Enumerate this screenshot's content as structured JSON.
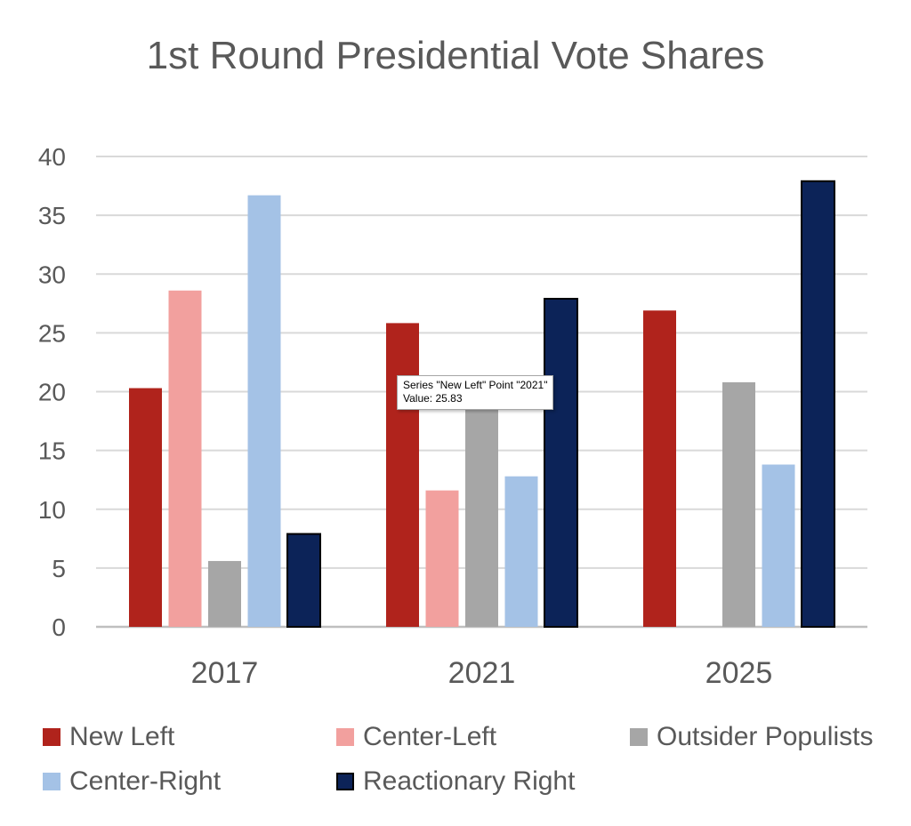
{
  "chart_data": {
    "type": "bar",
    "title": "1st Round Presidential Vote Shares",
    "categories": [
      "2017",
      "2021",
      "2025"
    ],
    "ylim": [
      0,
      40
    ],
    "yticks": [
      0,
      5,
      10,
      15,
      20,
      25,
      30,
      35,
      40
    ],
    "grid": true,
    "legend_position": "bottom",
    "series": [
      {
        "name": "New Left",
        "color": "#b0231c",
        "values": [
          20.3,
          25.83,
          26.9
        ]
      },
      {
        "name": "Center-Left",
        "color": "#f2a09e",
        "values": [
          28.6,
          11.6,
          null
        ]
      },
      {
        "name": "Outsider Populists",
        "color": "#a6a6a6",
        "values": [
          5.6,
          19.9,
          20.8
        ]
      },
      {
        "name": "Center-Right",
        "color": "#a4c2e6",
        "values": [
          36.7,
          12.8,
          13.8
        ]
      },
      {
        "name": "Reactionary Right",
        "color": "#0c2358",
        "values": [
          7.9,
          27.9,
          37.9
        ]
      }
    ]
  },
  "tooltip": {
    "line1": "Series \"New Left\" Point \"2021\"",
    "line2": "Value: 25.83"
  }
}
